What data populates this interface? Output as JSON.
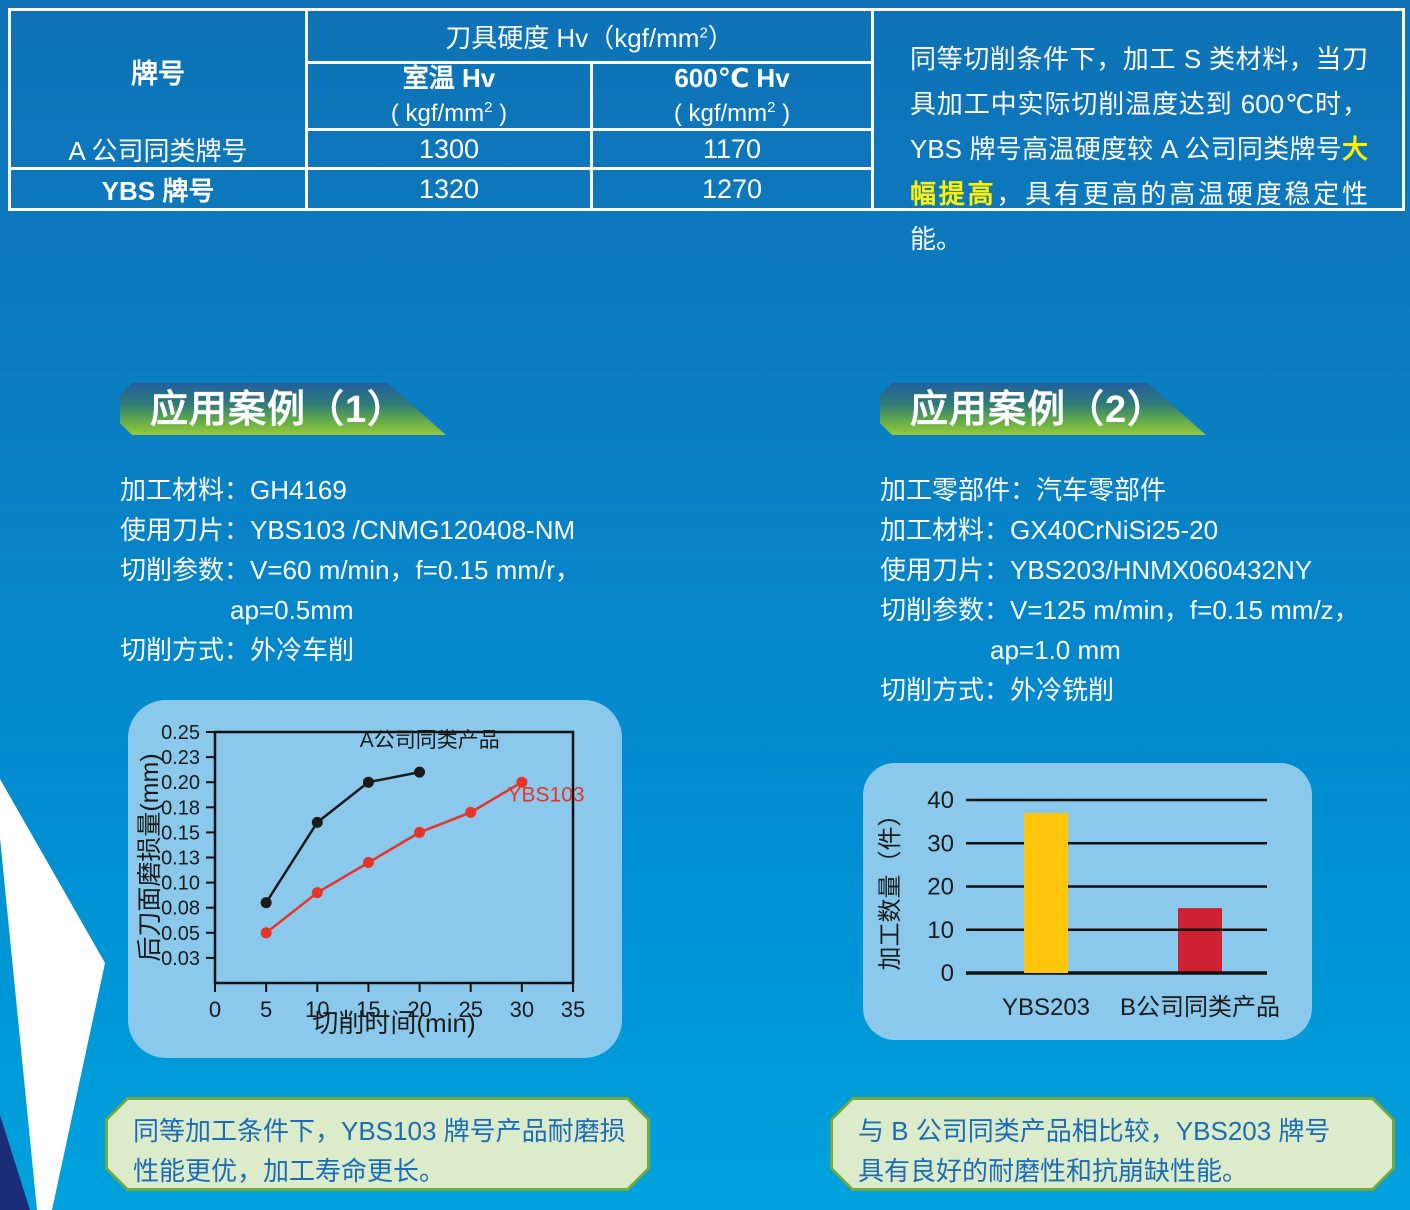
{
  "colors": {
    "page_bg_top": "#0f72b6",
    "page_bg_bottom": "#00a2de",
    "panel_blue": "#8bc9ec",
    "banner_green": "#94ca3c",
    "banner_blue": "#215f9e",
    "callout_bg": "#dcecca",
    "callout_border": "#76a93d",
    "callout_text": "#1b6cb5",
    "highlight_yellow": "#fff100",
    "bar_yellow": "#fdc50c",
    "bar_red": "#cd2030",
    "line_black": "#1a1a1a",
    "line_red": "#e63428",
    "deco_navy": "#1b2d77"
  },
  "header_table": {
    "col_brand": "牌号",
    "hardness_title": {
      "pre": "刀具硬度 Hv（kgf/mm",
      "sup": "2",
      "post": "）"
    },
    "sub_room": {
      "title": "室温 Hv",
      "unit_pre": "( kgf/mm",
      "sup": "2",
      "unit_post": " )"
    },
    "sub_600": {
      "title": "600℃ Hv",
      "unit_pre": "( kgf/mm",
      "sup": "2",
      "unit_post": " )"
    },
    "rows": [
      {
        "brand": "A 公司同类牌号",
        "room": "1300",
        "high": "1170"
      },
      {
        "brand": "YBS 牌号",
        "room": "1320",
        "high": "1270"
      }
    ]
  },
  "note": {
    "seg1": "同等切削条件下，加工 S 类材料，当刀具加工中实际切削温度达到 600℃时，YBS 牌号高温硬度较 A 公司同类牌号",
    "highlight": "大幅提高",
    "seg2": "，具有更高的高温硬度稳定性能。"
  },
  "case1": {
    "banner": "应用案例（1）",
    "lines": [
      "加工材料：GH4169",
      "使用刀片：YBS103 /CNMG120408-NM",
      "切削参数：V=60 m/min，f=0.15 mm/r，",
      "ap=0.5mm",
      "切削方式：外冷车削"
    ],
    "callout_line1": "同等加工条件下，YBS103 牌号产品耐磨损",
    "callout_line2": "性能更优，加工寿命更长。"
  },
  "case2": {
    "banner": "应用案例（2）",
    "lines": [
      "加工零部件：汽车零部件",
      "加工材料：GX40CrNiSi25-20",
      "使用刀片：YBS203/HNMX060432NY",
      "切削参数：V=125 m/min，f=0.15 mm/z，",
      "ap=1.0 mm",
      "切削方式：外冷铣削"
    ],
    "callout_line1": "与 B 公司同类产品相比较，YBS203 牌号",
    "callout_line2": "具有良好的耐磨性和抗崩缺性能。"
  },
  "chart_data": [
    {
      "type": "line",
      "title": "",
      "xlabel": "切削时间(min)",
      "ylabel": "后刀面磨损量(mm)",
      "xlim": [
        0,
        35
      ],
      "ylim": [
        0,
        0.25
      ],
      "xticks": [
        0,
        5,
        10,
        15,
        20,
        25,
        30,
        35
      ],
      "yticks": {
        "labels": [
          "0.25",
          "0.23",
          "0.20",
          "0.18",
          "0.15",
          "0.13",
          "0.10",
          "0.08",
          "0.05",
          "0.03"
        ],
        "values": [
          0.25,
          0.225,
          0.2,
          0.175,
          0.15,
          0.125,
          0.1,
          0.075,
          0.05,
          0.025
        ]
      },
      "grid": false,
      "legend_position": "inline-labels",
      "series": [
        {
          "name": "A公司同类产品",
          "color": "#1a1a1a",
          "x": [
            5,
            10,
            15,
            20
          ],
          "y": [
            0.08,
            0.16,
            0.2,
            0.21
          ]
        },
        {
          "name": "YBS103",
          "color": "#e63428",
          "x": [
            5,
            10,
            15,
            20,
            25,
            30
          ],
          "y": [
            0.05,
            0.09,
            0.12,
            0.15,
            0.17,
            0.2
          ]
        }
      ],
      "annotations": [
        {
          "text": "A公司同类产品",
          "x": 21,
          "y": 0.235,
          "color": "#1a1a1a",
          "anchor": "middle"
        },
        {
          "text": "YBS103",
          "x": 28.6,
          "y": 0.181,
          "color": "#e63428",
          "anchor": "start"
        }
      ]
    },
    {
      "type": "bar",
      "title": "",
      "xlabel": "",
      "ylabel": "加工数量（件）",
      "categories": [
        "YBS203",
        "B公司同类产品"
      ],
      "values": [
        37,
        15
      ],
      "colors": [
        "#fdc50c",
        "#cd2030"
      ],
      "ylim": [
        0,
        40
      ],
      "yticks": [
        0,
        10,
        20,
        30,
        40
      ],
      "grid": true,
      "bar_layer": [
        "front",
        "behind"
      ]
    }
  ]
}
